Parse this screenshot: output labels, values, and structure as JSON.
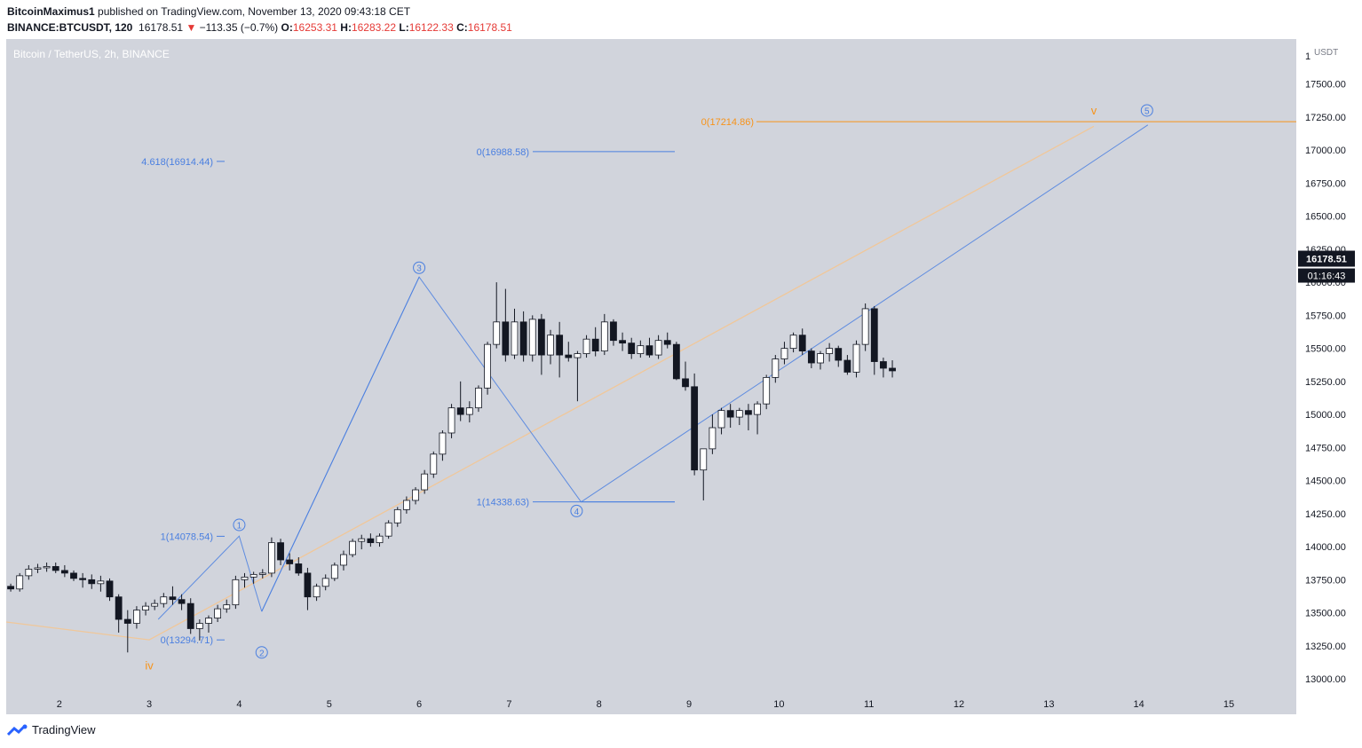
{
  "header": {
    "publisher": "BitcoinMaximus1",
    "published_text": "published on TradingView.com, November 13, 2020 09:43:18 CET",
    "symbol": "BINANCE:BTCUSDT, 120",
    "last": "16178.51",
    "change": "−113.35 (−0.7%)",
    "o_label": "O:",
    "o": "16253.31",
    "h_label": "H:",
    "h": "16283.22",
    "l_label": "L:",
    "l": "16122.33",
    "c_label": "C:",
    "c": "16178.51"
  },
  "symbol_label": "Bitcoin / TetherUS, 2h, BINANCE",
  "footer": {
    "brand": "TradingView"
  },
  "colors": {
    "bg": "#d1d4dc",
    "up": "#ffffff",
    "down": "#131722",
    "blue": "#4a7fe0",
    "orange": "#f7931a",
    "peach": "#f0c79a"
  },
  "chart_data": {
    "type": "candlestick",
    "y_unit": "USDT",
    "y_top_label": "1",
    "y_ticks": [
      17500,
      17250,
      17000,
      16750,
      16500,
      16250,
      16000,
      15750,
      15500,
      15250,
      15000,
      14750,
      14500,
      14250,
      14000,
      13750,
      13500,
      13250,
      13000
    ],
    "y_tick_labels": [
      "17500.00",
      "17250.00",
      "17000.00",
      "16750.00",
      "16500.00",
      "16250.00",
      "16000.00",
      "15750.00",
      "15500.00",
      "15250.00",
      "15000.00",
      "14750.00",
      "14500.00",
      "14250.00",
      "14000.00",
      "13750.00",
      "13500.00",
      "13250.00",
      "13000.00"
    ],
    "ylim": [
      12920,
      17840
    ],
    "x_ticks": [
      2,
      3,
      4,
      5,
      6,
      7,
      8,
      9,
      10,
      11,
      12,
      13,
      14,
      15
    ],
    "x_tick_labels": [
      "2",
      "3",
      "4",
      "5",
      "6",
      "7",
      "8",
      "9",
      "10",
      "11",
      "12",
      "13",
      "14",
      "15"
    ],
    "xlim": [
      1.41,
      15.75
    ],
    "last_price_label": "16178.51",
    "countdown_label": "01:16:43",
    "fib_labels": [
      {
        "text": "4.618(16914.44)",
        "price": 16914.44,
        "x": 3.8,
        "color": "blue"
      },
      {
        "text": "0(16988.58)",
        "price": 16988.58,
        "x": 8.85,
        "color": "blue"
      },
      {
        "text": "1(14338.63)",
        "price": 14338.63,
        "x": 8.85,
        "color": "blue"
      },
      {
        "text": "1(14078.54)",
        "price": 14078.54,
        "x": 3.8,
        "color": "blue"
      },
      {
        "text": "0(13294.71)",
        "price": 13294.71,
        "x": 3.8,
        "color": "blue"
      },
      {
        "text": "0(17214.86)",
        "price": 17214.86,
        "x": 15.75,
        "color": "orange"
      }
    ],
    "waves": [
      {
        "label": "1",
        "x": 4.0,
        "price": 14165
      },
      {
        "label": "2",
        "x": 4.25,
        "price": 13200
      },
      {
        "label": "3",
        "x": 6.0,
        "price": 16110
      },
      {
        "label": "4",
        "x": 7.75,
        "price": 14270
      },
      {
        "label": "5",
        "x": 14.09,
        "price": 17300
      }
    ],
    "orange_labels": [
      {
        "label": "iv",
        "x": 3.0,
        "price": 13070
      },
      {
        "label": "v",
        "x": 13.5,
        "price": 17270
      }
    ],
    "blue_path": [
      [
        4.25,
        13510
      ],
      [
        6.0,
        16040
      ],
      [
        7.8,
        14338
      ],
      [
        14.1,
        17190
      ]
    ],
    "blue_path2": [
      [
        3.1,
        13450
      ],
      [
        4.0,
        14080
      ],
      [
        4.25,
        13510
      ]
    ],
    "peach_line": [
      [
        1.41,
        13430
      ],
      [
        3.0,
        13295
      ],
      [
        13.5,
        17180
      ]
    ],
    "candles": [
      [
        1.46,
        13700,
        13720,
        13660,
        13680
      ],
      [
        1.56,
        13680,
        13800,
        13660,
        13780
      ],
      [
        1.66,
        13780,
        13860,
        13750,
        13830
      ],
      [
        1.76,
        13830,
        13870,
        13800,
        13840
      ],
      [
        1.86,
        13840,
        13880,
        13810,
        13850
      ],
      [
        1.96,
        13850,
        13880,
        13800,
        13820
      ],
      [
        2.06,
        13820,
        13860,
        13770,
        13800
      ],
      [
        2.16,
        13800,
        13820,
        13740,
        13760
      ],
      [
        2.26,
        13760,
        13800,
        13690,
        13750
      ],
      [
        2.36,
        13750,
        13790,
        13680,
        13720
      ],
      [
        2.46,
        13720,
        13780,
        13660,
        13740
      ],
      [
        2.56,
        13740,
        13760,
        13590,
        13620
      ],
      [
        2.66,
        13620,
        13640,
        13350,
        13450
      ],
      [
        2.76,
        13450,
        13520,
        13200,
        13420
      ],
      [
        2.86,
        13420,
        13550,
        13380,
        13520
      ],
      [
        2.96,
        13520,
        13580,
        13480,
        13550
      ],
      [
        3.06,
        13550,
        13600,
        13520,
        13570
      ],
      [
        3.16,
        13570,
        13650,
        13540,
        13620
      ],
      [
        3.26,
        13620,
        13700,
        13560,
        13600
      ],
      [
        3.36,
        13600,
        13640,
        13520,
        13570
      ],
      [
        3.46,
        13570,
        13610,
        13340,
        13380
      ],
      [
        3.56,
        13380,
        13450,
        13290,
        13420
      ],
      [
        3.66,
        13420,
        13480,
        13350,
        13460
      ],
      [
        3.76,
        13460,
        13560,
        13430,
        13530
      ],
      [
        3.86,
        13530,
        13600,
        13500,
        13560
      ],
      [
        3.96,
        13560,
        13780,
        13530,
        13750
      ],
      [
        4.06,
        13750,
        13800,
        13690,
        13770
      ],
      [
        4.16,
        13770,
        13810,
        13720,
        13790
      ],
      [
        4.26,
        13790,
        13830,
        13760,
        13800
      ],
      [
        4.36,
        13800,
        14070,
        13770,
        14030
      ],
      [
        4.46,
        14030,
        14060,
        13860,
        13900
      ],
      [
        4.56,
        13900,
        13950,
        13820,
        13870
      ],
      [
        4.66,
        13870,
        13920,
        13780,
        13800
      ],
      [
        4.76,
        13800,
        13840,
        13520,
        13620
      ],
      [
        4.86,
        13620,
        13720,
        13590,
        13700
      ],
      [
        4.96,
        13700,
        13790,
        13670,
        13760
      ],
      [
        5.06,
        13760,
        13880,
        13740,
        13860
      ],
      [
        5.16,
        13860,
        13970,
        13820,
        13940
      ],
      [
        5.26,
        13940,
        14060,
        13920,
        14040
      ],
      [
        5.36,
        14040,
        14090,
        13980,
        14060
      ],
      [
        5.46,
        14060,
        14100,
        14000,
        14030
      ],
      [
        5.56,
        14030,
        14100,
        14000,
        14080
      ],
      [
        5.66,
        14080,
        14200,
        14060,
        14180
      ],
      [
        5.76,
        14180,
        14300,
        14150,
        14280
      ],
      [
        5.86,
        14280,
        14380,
        14250,
        14350
      ],
      [
        5.96,
        14350,
        14450,
        14320,
        14430
      ],
      [
        6.06,
        14430,
        14580,
        14400,
        14550
      ],
      [
        6.16,
        14550,
        14720,
        14520,
        14700
      ],
      [
        6.26,
        14700,
        14880,
        14650,
        14860
      ],
      [
        6.36,
        14860,
        15080,
        14820,
        15050
      ],
      [
        6.46,
        15050,
        15250,
        14950,
        15000
      ],
      [
        6.56,
        15000,
        15100,
        14940,
        15050
      ],
      [
        6.66,
        15050,
        15220,
        15020,
        15200
      ],
      [
        6.76,
        15200,
        15550,
        15150,
        15530
      ],
      [
        6.86,
        15530,
        16000,
        15500,
        15700
      ],
      [
        6.96,
        15700,
        15950,
        15400,
        15450
      ],
      [
        7.06,
        15450,
        15800,
        15420,
        15700
      ],
      [
        7.16,
        15700,
        15780,
        15400,
        15450
      ],
      [
        7.26,
        15450,
        15750,
        15400,
        15720
      ],
      [
        7.36,
        15720,
        15760,
        15300,
        15450
      ],
      [
        7.46,
        15450,
        15640,
        15380,
        15600
      ],
      [
        7.56,
        15600,
        15700,
        15280,
        15450
      ],
      [
        7.66,
        15450,
        15550,
        15400,
        15430
      ],
      [
        7.76,
        15430,
        15480,
        15100,
        15460
      ],
      [
        7.86,
        15460,
        15600,
        15430,
        15570
      ],
      [
        7.96,
        15570,
        15660,
        15440,
        15480
      ],
      [
        8.06,
        15480,
        15760,
        15450,
        15700
      ],
      [
        8.16,
        15700,
        15720,
        15520,
        15560
      ],
      [
        8.26,
        15560,
        15620,
        15480,
        15540
      ],
      [
        8.36,
        15540,
        15580,
        15420,
        15460
      ],
      [
        8.46,
        15460,
        15560,
        15430,
        15520
      ],
      [
        8.56,
        15520,
        15580,
        15430,
        15450
      ],
      [
        8.66,
        15450,
        15600,
        15420,
        15560
      ],
      [
        8.76,
        15560,
        15620,
        15500,
        15530
      ],
      [
        8.86,
        15530,
        15550,
        15260,
        15270
      ],
      [
        8.96,
        15270,
        15400,
        15180,
        15210
      ],
      [
        9.06,
        15210,
        15310,
        14540,
        14580
      ],
      [
        9.16,
        14580,
        14720,
        14350,
        14740
      ],
      [
        9.26,
        14740,
        15000,
        14700,
        14900
      ],
      [
        9.36,
        14900,
        15050,
        14850,
        15030
      ],
      [
        9.46,
        15030,
        15080,
        14900,
        14980
      ],
      [
        9.56,
        14980,
        15050,
        14920,
        15030
      ],
      [
        9.66,
        15030,
        15080,
        14880,
        15000
      ],
      [
        9.76,
        15000,
        15100,
        14850,
        15080
      ],
      [
        9.86,
        15080,
        15300,
        15040,
        15280
      ],
      [
        9.96,
        15280,
        15450,
        15240,
        15420
      ],
      [
        10.06,
        15420,
        15550,
        15380,
        15500
      ],
      [
        10.16,
        15500,
        15620,
        15470,
        15600
      ],
      [
        10.26,
        15600,
        15650,
        15450,
        15480
      ],
      [
        10.36,
        15480,
        15500,
        15350,
        15390
      ],
      [
        10.46,
        15390,
        15480,
        15340,
        15460
      ],
      [
        10.56,
        15460,
        15540,
        15400,
        15500
      ],
      [
        10.66,
        15500,
        15520,
        15360,
        15410
      ],
      [
        10.76,
        15410,
        15450,
        15300,
        15320
      ],
      [
        10.86,
        15320,
        15560,
        15280,
        15530
      ],
      [
        10.96,
        15530,
        15840,
        15480,
        15800
      ],
      [
        11.06,
        15800,
        15820,
        15300,
        15400
      ],
      [
        11.16,
        15400,
        15430,
        15280,
        15350
      ],
      [
        11.26,
        15350,
        15410,
        15280,
        15330
      ]
    ]
  }
}
